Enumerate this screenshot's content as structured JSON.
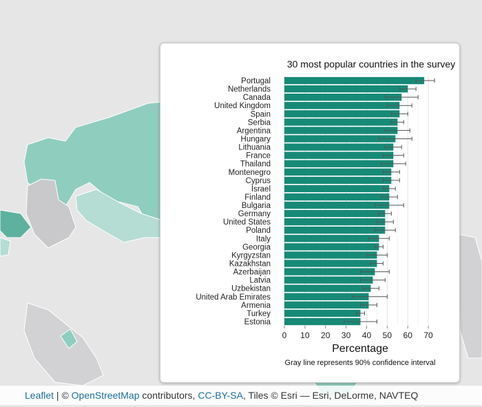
{
  "chart_data": {
    "type": "bar",
    "orientation": "horizontal",
    "title": "30 most popular countries in the survey",
    "xlabel": "Percentage",
    "caption": "Gray line represents 90% confidence interval",
    "xlim": [
      0,
      75
    ],
    "xticks": [
      0,
      10,
      20,
      30,
      40,
      50,
      60,
      70
    ],
    "grid": true,
    "bar_color": "#178a77",
    "errorbar_color": "#555555",
    "categories": [
      "Portugal",
      "Netherlands",
      "Canada",
      "United Kingdom",
      "Spain",
      "Serbia",
      "Argentina",
      "Hungary",
      "Lithuania",
      "France",
      "Thailand",
      "Montenegro",
      "Cyprus",
      "Israel",
      "Finland",
      "Bulgaria",
      "Germany",
      "United States",
      "Poland",
      "Italy",
      "Georgia",
      "Kyrgyzstan",
      "Kazakhstan",
      "Azerbaijan",
      "Latvia",
      "Uzbekistan",
      "United Arab Emirates",
      "Armenia",
      "Turkey",
      "Estonia"
    ],
    "values": [
      68,
      60,
      57,
      56,
      56,
      55,
      55,
      54,
      53,
      53,
      53,
      52,
      52,
      51,
      51,
      51,
      49,
      49,
      49,
      46,
      46,
      45,
      45,
      44,
      43,
      42,
      41,
      41,
      37,
      37
    ],
    "ci_low": [
      64,
      56,
      49,
      50,
      52,
      52,
      49,
      46,
      49,
      48,
      47,
      48,
      48,
      48,
      47,
      44,
      46,
      45,
      44,
      41,
      44,
      40,
      42,
      37,
      37,
      38,
      33,
      37,
      35,
      29
    ],
    "ci_high": [
      73,
      64,
      65,
      62,
      60,
      58,
      61,
      62,
      57,
      58,
      59,
      56,
      56,
      54,
      55,
      58,
      52,
      53,
      54,
      51,
      48,
      50,
      48,
      51,
      49,
      46,
      50,
      45,
      39,
      45
    ]
  },
  "attribution": {
    "leaflet": "Leaflet",
    "sep": " | © ",
    "osm": "OpenStreetMap",
    "contributors": " contributors, ",
    "license": "CC-BY-SA",
    "tiles": ", Tiles © Esri — Esri, DeLorme, NAVTEQ"
  }
}
